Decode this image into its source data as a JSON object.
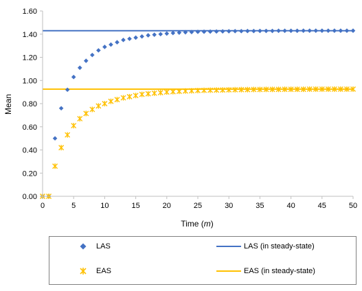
{
  "chart_data": {
    "type": "scatter",
    "title": "",
    "xlabel_prefix": "Time (",
    "xlabel_var": "m",
    "xlabel_suffix": ")",
    "ylabel": "Mean",
    "xlim": [
      0,
      50
    ],
    "ylim": [
      0,
      1.6
    ],
    "x_ticks": [
      "0",
      "5",
      "10",
      "15",
      "20",
      "25",
      "30",
      "35",
      "40",
      "45",
      "50"
    ],
    "y_ticks": [
      "0.00",
      "0.20",
      "0.40",
      "0.60",
      "0.80",
      "1.00",
      "1.20",
      "1.40",
      "1.60"
    ],
    "grid": false,
    "legend_position": "bottom",
    "series": [
      {
        "name": "LAS",
        "kind": "markers",
        "marker": "diamond",
        "color": "#4472C4",
        "x": [
          0,
          1,
          2,
          3,
          4,
          5,
          6,
          7,
          8,
          9,
          10,
          11,
          12,
          13,
          14,
          15,
          16,
          17,
          18,
          19,
          20,
          21,
          22,
          23,
          24,
          25,
          26,
          27,
          28,
          29,
          30,
          31,
          32,
          33,
          34,
          35,
          36,
          37,
          38,
          39,
          40,
          41,
          42,
          43,
          44,
          45,
          46,
          47,
          48,
          49,
          50
        ],
        "y": [
          0,
          0,
          0.5,
          0.76,
          0.92,
          1.03,
          1.11,
          1.17,
          1.22,
          1.26,
          1.29,
          1.31,
          1.33,
          1.35,
          1.36,
          1.37,
          1.38,
          1.39,
          1.395,
          1.4,
          1.405,
          1.41,
          1.413,
          1.416,
          1.418,
          1.42,
          1.421,
          1.422,
          1.423,
          1.424,
          1.425,
          1.426,
          1.426,
          1.427,
          1.427,
          1.428,
          1.428,
          1.428,
          1.429,
          1.429,
          1.429,
          1.429,
          1.43,
          1.43,
          1.43,
          1.43,
          1.43,
          1.43,
          1.43,
          1.43,
          1.43
        ]
      },
      {
        "name": "EAS",
        "kind": "markers",
        "marker": "asterisk",
        "color": "#FFC000",
        "x": [
          0,
          1,
          2,
          3,
          4,
          5,
          6,
          7,
          8,
          9,
          10,
          11,
          12,
          13,
          14,
          15,
          16,
          17,
          18,
          19,
          20,
          21,
          22,
          23,
          24,
          25,
          26,
          27,
          28,
          29,
          30,
          31,
          32,
          33,
          34,
          35,
          36,
          37,
          38,
          39,
          40,
          41,
          42,
          43,
          44,
          45,
          46,
          47,
          48,
          49,
          50
        ],
        "y": [
          0,
          0,
          0.26,
          0.42,
          0.53,
          0.61,
          0.67,
          0.715,
          0.75,
          0.78,
          0.8,
          0.82,
          0.835,
          0.85,
          0.86,
          0.87,
          0.88,
          0.885,
          0.89,
          0.895,
          0.9,
          0.903,
          0.906,
          0.909,
          0.911,
          0.913,
          0.915,
          0.916,
          0.917,
          0.918,
          0.919,
          0.92,
          0.921,
          0.921,
          0.922,
          0.922,
          0.923,
          0.923,
          0.923,
          0.924,
          0.924,
          0.924,
          0.924,
          0.925,
          0.925,
          0.925,
          0.925,
          0.925,
          0.925,
          0.925,
          0.925
        ]
      },
      {
        "name": "LAS (in steady-state)",
        "kind": "hline",
        "color": "#4472C4",
        "y": 1.43
      },
      {
        "name": "EAS (in steady-state)",
        "kind": "hline",
        "color": "#FFC000",
        "y": 0.925
      }
    ]
  }
}
